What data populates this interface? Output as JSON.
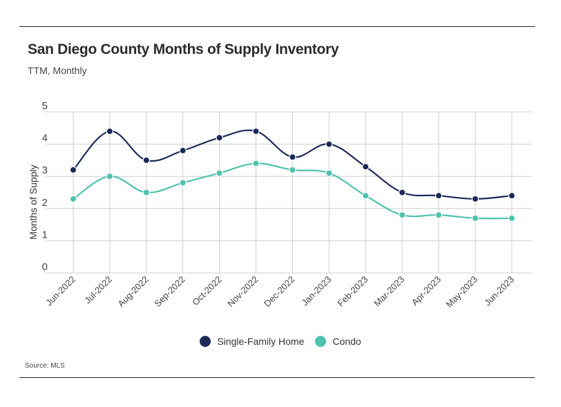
{
  "chart_data": {
    "type": "line",
    "title": "San Diego County Months of Supply Inventory",
    "subtitle": "TTM, Monthly",
    "xlabel": "",
    "ylabel": "Months of Supply",
    "ylim": [
      0,
      5
    ],
    "yticks": [
      0,
      1,
      2,
      3,
      4,
      5
    ],
    "categories": [
      "Jun-2022",
      "Jul-2022",
      "Aug-2022",
      "Sep-2022",
      "Oct-2022",
      "Nov-2022",
      "Dec-2022",
      "Jan-2023",
      "Feb-2023",
      "Mar-2023",
      "Apr-2023",
      "May-2023",
      "Jun-2023"
    ],
    "series": [
      {
        "name": "Single-Family Home",
        "color": "#1b2a57",
        "values": [
          3.2,
          4.4,
          3.5,
          3.8,
          4.2,
          4.4,
          3.6,
          4.0,
          3.3,
          2.5,
          2.4,
          2.3,
          2.4
        ]
      },
      {
        "name": "Condo",
        "color": "#4fc1ad",
        "values": [
          2.3,
          3.0,
          2.5,
          2.8,
          3.1,
          3.4,
          3.2,
          3.1,
          2.4,
          1.8,
          1.8,
          1.7,
          1.7
        ]
      }
    ],
    "grid": true,
    "legend_position": "bottom-center"
  },
  "source": "Source:  MLS"
}
